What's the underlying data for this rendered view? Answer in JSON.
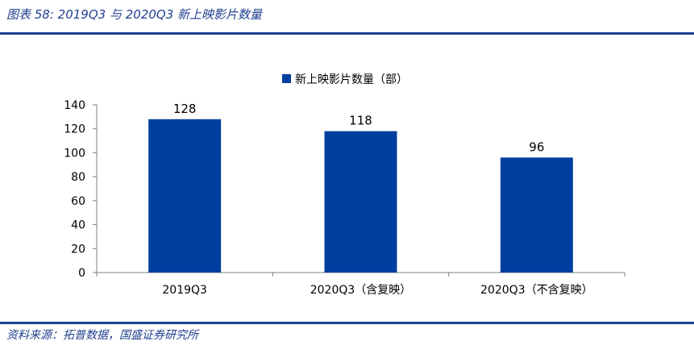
{
  "figure": {
    "title": "图表 58:  2019Q3 与 2020Q3 新上映影片数量",
    "source": "资料来源：拓普数据，国盛证券研究所"
  },
  "colors": {
    "bar": "#003f9f",
    "accent": "#1a4191"
  },
  "chart_data": {
    "type": "bar",
    "categories": [
      "2019Q3",
      "2020Q3（含复映）",
      "2020Q3（不含复映）"
    ],
    "series": [
      {
        "name": "新上映影片数量（部）",
        "values": [
          128,
          118,
          96
        ]
      }
    ],
    "title": "",
    "xlabel": "",
    "ylabel": "",
    "ylim": [
      0,
      140
    ],
    "yticks": [
      0,
      20,
      40,
      60,
      80,
      100,
      120,
      140
    ],
    "legend_position": "top-center",
    "grid": false,
    "data_labels": true
  }
}
